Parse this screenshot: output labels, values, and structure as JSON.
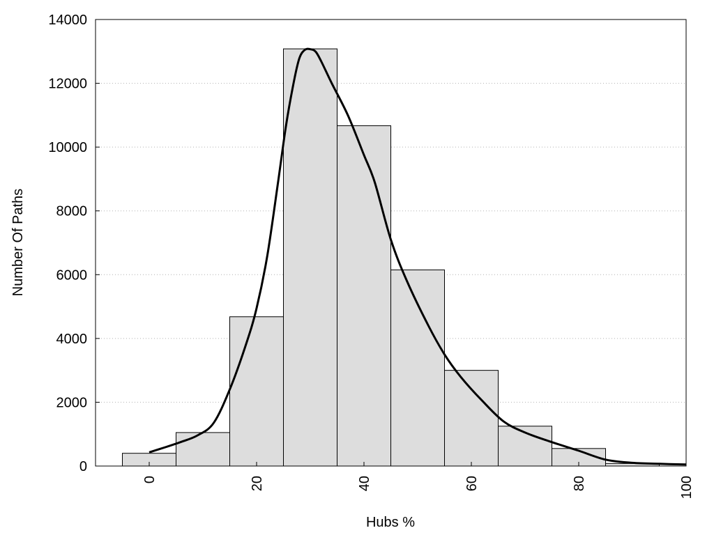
{
  "chart_data": {
    "type": "bar",
    "title": "",
    "xlabel": "Hubs %",
    "ylabel": "Number Of Paths",
    "xlim": [
      -10,
      100
    ],
    "ylim": [
      0,
      14000
    ],
    "x_ticks": [
      0,
      20,
      40,
      60,
      80,
      100
    ],
    "y_ticks": [
      0,
      2000,
      4000,
      6000,
      8000,
      10000,
      12000,
      14000
    ],
    "grid": "horizontal dotted",
    "bin_width": 10,
    "bar_color": "#dddddd",
    "series": [
      {
        "type": "bar",
        "x": [
          0,
          10,
          20,
          30,
          40,
          50,
          60,
          70,
          80,
          90
        ],
        "values": [
          400,
          1050,
          4680,
          13080,
          10670,
          6150,
          3000,
          1250,
          550,
          80
        ]
      },
      {
        "type": "line",
        "x": [
          0,
          3,
          6,
          9,
          12,
          15,
          18,
          20,
          22,
          24,
          25.5,
          27,
          28,
          29,
          30,
          31,
          32,
          34,
          37,
          40,
          42,
          45,
          48,
          52,
          55,
          58,
          62,
          66,
          70,
          75,
          80,
          85,
          90,
          95,
          100
        ],
        "y": [
          430,
          590,
          760,
          960,
          1350,
          2400,
          3800,
          4950,
          6600,
          8900,
          10700,
          12100,
          12800,
          13050,
          13070,
          12990,
          12700,
          12000,
          11000,
          9750,
          8900,
          7100,
          5800,
          4400,
          3500,
          2800,
          2050,
          1400,
          1050,
          750,
          480,
          200,
          100,
          70,
          50
        ]
      }
    ]
  }
}
